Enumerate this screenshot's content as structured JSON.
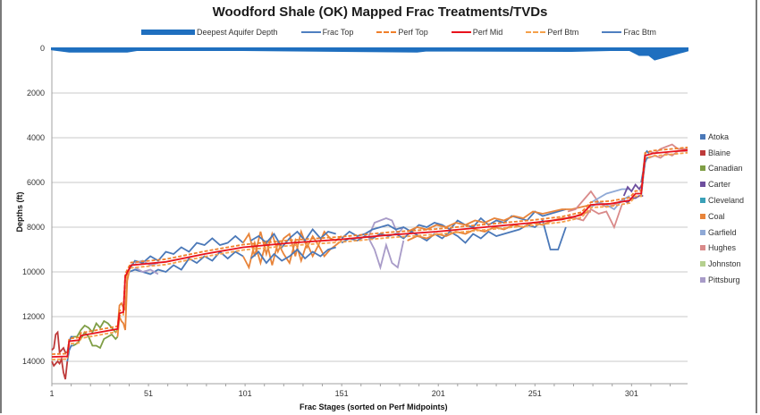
{
  "chart_data": {
    "type": "line",
    "title": "Woodford Shale (OK) Mapped Frac Treatments/TVDs",
    "xlabel": "Frac Stages  (sorted on  Perf Midpoints)",
    "ylabel": "Depths (ft)",
    "xlim": [
      1,
      330
    ],
    "ylim": [
      15000,
      0
    ],
    "y_inverted": true,
    "grid": "horizontal",
    "x_ticks": [
      "1",
      "51",
      "101",
      "151",
      "201",
      "251",
      "301"
    ],
    "x_tick_values": [
      1,
      51,
      101,
      151,
      201,
      251,
      301
    ],
    "y_ticks": [
      "0",
      "2000",
      "4000",
      "6000",
      "8000",
      "10000",
      "12000",
      "14000"
    ],
    "y_tick_values": [
      0,
      2000,
      4000,
      6000,
      8000,
      10000,
      12000,
      14000
    ],
    "legend_top": [
      {
        "name": "Deepest Aquifer Depth",
        "style": "area",
        "color": "#1f6fbf"
      },
      {
        "name": "Frac Top",
        "style": "solid",
        "color": "#4f7fc0"
      },
      {
        "name": "Perf Top",
        "style": "dashed",
        "color": "#f07f2a"
      },
      {
        "name": "Perf Mid",
        "style": "solid",
        "color": "#e8121c"
      },
      {
        "name": "Perf Btm",
        "style": "dashed",
        "color": "#f5a04a"
      },
      {
        "name": "Frac Btm",
        "style": "solid",
        "color": "#4f7fc0"
      }
    ],
    "legend_top_placement": "top",
    "legend_counties_placement": "right",
    "counties": [
      {
        "name": "Atoka",
        "color": "#4a78b8"
      },
      {
        "name": "Blaine",
        "color": "#be3a3a"
      },
      {
        "name": "Canadian",
        "color": "#7f9e45"
      },
      {
        "name": "Carter",
        "color": "#6d4e9e"
      },
      {
        "name": "Cleveland",
        "color": "#3aa0b8"
      },
      {
        "name": "Coal",
        "color": "#e8843a"
      },
      {
        "name": "Garfield",
        "color": "#8fa9d6"
      },
      {
        "name": "Hughes",
        "color": "#d98a8a"
      },
      {
        "name": "Johnston",
        "color": "#b5d08f"
      },
      {
        "name": "Pittsburg",
        "color": "#a89bc8"
      }
    ],
    "aquifer_depth": {
      "stages": [
        1,
        10,
        40,
        45,
        100,
        190,
        195,
        270,
        290,
        300,
        305,
        310,
        313,
        330
      ],
      "depth": [
        50,
        150,
        150,
        80,
        80,
        150,
        100,
        120,
        80,
        80,
        300,
        300,
        500,
        100
      ]
    },
    "perf_mid": {
      "stages": [
        1,
        9,
        10,
        15,
        16,
        35,
        36,
        38,
        39,
        42,
        60,
        80,
        100,
        125,
        150,
        175,
        200,
        225,
        250,
        265,
        275,
        280,
        290,
        300,
        303,
        306,
        308,
        312,
        330
      ],
      "depth": [
        13800,
        13780,
        13100,
        13050,
        12850,
        12550,
        11850,
        11800,
        10200,
        9700,
        9550,
        9200,
        8900,
        8700,
        8550,
        8350,
        8200,
        8000,
        7800,
        7650,
        7450,
        7000,
        6950,
        6800,
        6500,
        6500,
        4800,
        4700,
        4550
      ]
    },
    "frac_segments": [
      {
        "county": "Blaine",
        "stages": [
          1,
          2,
          3,
          4,
          5,
          6,
          7,
          8,
          9
        ],
        "top": [
          13500,
          13400,
          12800,
          12700,
          13600,
          13500,
          13400,
          13600,
          13600
        ],
        "btm": [
          14000,
          14200,
          14100,
          14000,
          14100,
          13900,
          14500,
          14800,
          14000
        ]
      },
      {
        "county": "Atoka",
        "stages": [
          9,
          10,
          11,
          12
        ],
        "top": [
          13600,
          13100,
          12900,
          12900
        ],
        "btm": [
          14000,
          13500,
          13300,
          13300
        ]
      },
      {
        "county": "Canadian",
        "stages": [
          12,
          14,
          16,
          18,
          20,
          22,
          24,
          26,
          28,
          30,
          32,
          34,
          35
        ],
        "top": [
          12900,
          12900,
          12600,
          12400,
          12500,
          12700,
          12300,
          12500,
          12200,
          12300,
          12500,
          12700,
          12600
        ],
        "btm": [
          13300,
          13200,
          13000,
          12700,
          12900,
          13300,
          13300,
          13400,
          13000,
          12900,
          12800,
          13000,
          12900
        ]
      },
      {
        "county": "Coal",
        "stages": [
          35,
          36,
          37,
          38,
          39,
          40,
          41
        ],
        "top": [
          12500,
          11500,
          11400,
          11600,
          11700,
          10200,
          9900
        ],
        "btm": [
          12900,
          12000,
          12200,
          12300,
          12600,
          10400,
          10000
        ]
      },
      {
        "county": "Atoka",
        "stages": [
          41,
          44,
          48,
          52,
          56,
          60,
          64,
          68,
          72,
          76,
          80,
          84,
          88,
          92,
          96,
          100
        ],
        "top": [
          9900,
          9500,
          9600,
          9300,
          9500,
          9100,
          9200,
          8900,
          9100,
          8700,
          8800,
          8500,
          8800,
          8700,
          8400,
          8700
        ],
        "btm": [
          10000,
          9900,
          10000,
          10100,
          9900,
          10000,
          9700,
          9900,
          9400,
          9600,
          9300,
          9500,
          9100,
          9400,
          9100,
          9300
        ]
      },
      {
        "county": "Pittsburg",
        "stages": [
          44,
          48,
          52,
          56
        ],
        "top": [
          9600,
          9500,
          9700,
          9600
        ],
        "btm": [
          9800,
          10000,
          9900,
          10100
        ]
      },
      {
        "county": "Coal",
        "stages": [
          100,
          103,
          106,
          109,
          112,
          115,
          118,
          121,
          124,
          127,
          130,
          133,
          136,
          139,
          142,
          145,
          148,
          151
        ],
        "top": [
          8700,
          8300,
          9300,
          8200,
          9200,
          8300,
          9100,
          8500,
          8300,
          9300,
          8200,
          8900,
          8400,
          8800,
          8200,
          8500,
          8600,
          8400
        ],
        "btm": [
          9300,
          9800,
          8700,
          9600,
          8600,
          9700,
          8700,
          9200,
          9600,
          8600,
          9500,
          8700,
          9300,
          8800,
          9300,
          9000,
          8800,
          8600
        ]
      },
      {
        "county": "Atoka",
        "stages": [
          104,
          108,
          112,
          116,
          120,
          124,
          128,
          132,
          136,
          140,
          144,
          148
        ],
        "top": [
          8600,
          8400,
          8700,
          8300,
          8900,
          8500,
          8200,
          8600,
          8100,
          8500,
          8200,
          8300
        ],
        "btm": [
          9400,
          9100,
          9600,
          9200,
          9500,
          9300,
          9000,
          9400,
          9100,
          9300,
          9000,
          8900
        ]
      },
      {
        "county": "Pittsburg",
        "stages": [
          165,
          168,
          171,
          174,
          177,
          180,
          183
        ],
        "top": [
          8400,
          7800,
          7700,
          7600,
          7700,
          8300,
          8000
        ],
        "btm": [
          8500,
          9000,
          9800,
          8800,
          9600,
          9800,
          8600
        ]
      },
      {
        "county": "Atoka",
        "stages": [
          151,
          155,
          159,
          163,
          167,
          171,
          175,
          179,
          183,
          187,
          191,
          195,
          199,
          203,
          207,
          211,
          215,
          219,
          223,
          227,
          231,
          235,
          239,
          243,
          247,
          251,
          255,
          259,
          263,
          267
        ],
        "top": [
          8500,
          8200,
          8400,
          8300,
          8100,
          8000,
          7900,
          8100,
          8000,
          8200,
          7900,
          8000,
          7800,
          7900,
          8100,
          7700,
          7900,
          8000,
          7600,
          7900,
          7700,
          7800,
          7500,
          7600,
          7700,
          7300,
          7500,
          7400,
          7300,
          7200
        ],
        "btm": [
          8700,
          8500,
          8600,
          8400,
          8500,
          8300,
          8400,
          8300,
          8500,
          8200,
          8400,
          8600,
          8300,
          8500,
          8200,
          8400,
          8700,
          8300,
          8500,
          8200,
          8400,
          8300,
          8200,
          8100,
          7900,
          8000,
          7700,
          9000,
          9000,
          8000
        ]
      },
      {
        "county": "Coal",
        "stages": [
          185,
          190,
          195,
          200,
          205,
          210,
          215,
          220,
          225,
          230,
          235,
          240,
          245,
          250,
          255,
          260,
          265,
          270,
          275,
          280
        ],
        "top": [
          8200,
          8000,
          8100,
          7900,
          8000,
          7800,
          7900,
          7700,
          7800,
          7600,
          7700,
          7500,
          7600,
          7300,
          7400,
          7300,
          7200,
          7200,
          7100,
          7000
        ],
        "btm": [
          8600,
          8400,
          8500,
          8300,
          8400,
          8200,
          8300,
          8100,
          8200,
          8000,
          8100,
          7900,
          8000,
          7800,
          7900,
          7700,
          7600,
          7600,
          7400,
          7300
        ]
      },
      {
        "county": "Hughes",
        "stages": [
          268,
          272,
          276,
          280,
          284,
          288,
          292,
          296
        ],
        "top": [
          7300,
          7200,
          6800,
          6400,
          6900,
          7100,
          7000,
          6800
        ],
        "btm": [
          7500,
          7600,
          7700,
          7200,
          7400,
          7300,
          8000,
          7000
        ]
      },
      {
        "county": "Garfield",
        "stages": [
          280,
          284,
          288,
          292,
          296,
          300
        ],
        "top": [
          6900,
          6700,
          6500,
          6400,
          6300,
          6300
        ],
        "btm": [
          7100,
          6900,
          7000,
          7200,
          6800,
          6600
        ]
      },
      {
        "county": "Carter",
        "stages": [
          297,
          299,
          301,
          303,
          305,
          307
        ],
        "top": [
          6600,
          6200,
          6400,
          6100,
          6300,
          6000
        ],
        "btm": [
          6800,
          6900,
          6700,
          6700,
          6600,
          6600
        ]
      },
      {
        "county": "Atoka",
        "stages": [
          306,
          307,
          308,
          309,
          310
        ],
        "top": [
          6000,
          5500,
          4700,
          4600,
          4700
        ],
        "btm": [
          6600,
          5800,
          5100,
          4900,
          4900
        ]
      },
      {
        "county": "Hughes",
        "stages": [
          310,
          313,
          316,
          319,
          322,
          325,
          330
        ],
        "top": [
          4600,
          4700,
          4500,
          4400,
          4300,
          4500,
          4500
        ],
        "btm": [
          4900,
          4800,
          4900,
          4700,
          4800,
          4600,
          4600
        ]
      }
    ]
  }
}
